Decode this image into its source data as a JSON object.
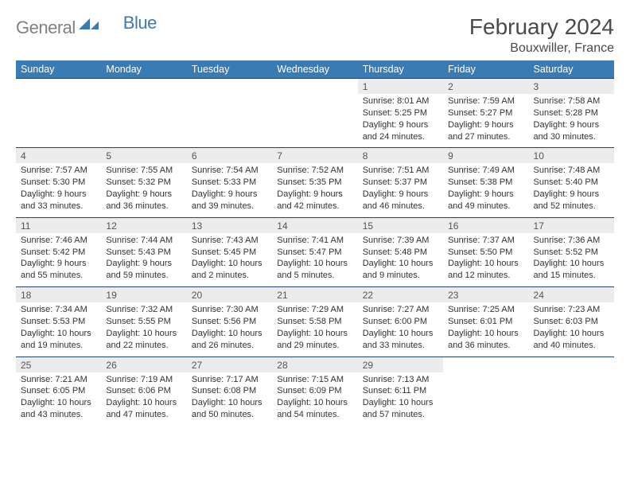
{
  "brand": {
    "part1": "General",
    "part2": "Blue"
  },
  "title": "February 2024",
  "location": "Bouxwiller, France",
  "colors": {
    "header_bg": "#3b7bb3",
    "header_text": "#ffffff",
    "week_divider": "#20456d",
    "daynum_bg": "#ececec",
    "logo_gray": "#808080",
    "logo_blue": "#3b7bb3",
    "body_text": "#333333",
    "page_bg": "#ffffff"
  },
  "typography": {
    "title_fontsize": 28,
    "location_fontsize": 16,
    "header_fontsize": 12.5,
    "daynum_fontsize": 12,
    "detail_fontsize": 11
  },
  "dayHeaders": [
    "Sunday",
    "Monday",
    "Tuesday",
    "Wednesday",
    "Thursday",
    "Friday",
    "Saturday"
  ],
  "weeks": [
    [
      null,
      null,
      null,
      null,
      {
        "n": "1",
        "sr": "8:01 AM",
        "ss": "5:25 PM",
        "dl": "9 hours and 24 minutes."
      },
      {
        "n": "2",
        "sr": "7:59 AM",
        "ss": "5:27 PM",
        "dl": "9 hours and 27 minutes."
      },
      {
        "n": "3",
        "sr": "7:58 AM",
        "ss": "5:28 PM",
        "dl": "9 hours and 30 minutes."
      }
    ],
    [
      {
        "n": "4",
        "sr": "7:57 AM",
        "ss": "5:30 PM",
        "dl": "9 hours and 33 minutes."
      },
      {
        "n": "5",
        "sr": "7:55 AM",
        "ss": "5:32 PM",
        "dl": "9 hours and 36 minutes."
      },
      {
        "n": "6",
        "sr": "7:54 AM",
        "ss": "5:33 PM",
        "dl": "9 hours and 39 minutes."
      },
      {
        "n": "7",
        "sr": "7:52 AM",
        "ss": "5:35 PM",
        "dl": "9 hours and 42 minutes."
      },
      {
        "n": "8",
        "sr": "7:51 AM",
        "ss": "5:37 PM",
        "dl": "9 hours and 46 minutes."
      },
      {
        "n": "9",
        "sr": "7:49 AM",
        "ss": "5:38 PM",
        "dl": "9 hours and 49 minutes."
      },
      {
        "n": "10",
        "sr": "7:48 AM",
        "ss": "5:40 PM",
        "dl": "9 hours and 52 minutes."
      }
    ],
    [
      {
        "n": "11",
        "sr": "7:46 AM",
        "ss": "5:42 PM",
        "dl": "9 hours and 55 minutes."
      },
      {
        "n": "12",
        "sr": "7:44 AM",
        "ss": "5:43 PM",
        "dl": "9 hours and 59 minutes."
      },
      {
        "n": "13",
        "sr": "7:43 AM",
        "ss": "5:45 PM",
        "dl": "10 hours and 2 minutes."
      },
      {
        "n": "14",
        "sr": "7:41 AM",
        "ss": "5:47 PM",
        "dl": "10 hours and 5 minutes."
      },
      {
        "n": "15",
        "sr": "7:39 AM",
        "ss": "5:48 PM",
        "dl": "10 hours and 9 minutes."
      },
      {
        "n": "16",
        "sr": "7:37 AM",
        "ss": "5:50 PM",
        "dl": "10 hours and 12 minutes."
      },
      {
        "n": "17",
        "sr": "7:36 AM",
        "ss": "5:52 PM",
        "dl": "10 hours and 15 minutes."
      }
    ],
    [
      {
        "n": "18",
        "sr": "7:34 AM",
        "ss": "5:53 PM",
        "dl": "10 hours and 19 minutes."
      },
      {
        "n": "19",
        "sr": "7:32 AM",
        "ss": "5:55 PM",
        "dl": "10 hours and 22 minutes."
      },
      {
        "n": "20",
        "sr": "7:30 AM",
        "ss": "5:56 PM",
        "dl": "10 hours and 26 minutes."
      },
      {
        "n": "21",
        "sr": "7:29 AM",
        "ss": "5:58 PM",
        "dl": "10 hours and 29 minutes."
      },
      {
        "n": "22",
        "sr": "7:27 AM",
        "ss": "6:00 PM",
        "dl": "10 hours and 33 minutes."
      },
      {
        "n": "23",
        "sr": "7:25 AM",
        "ss": "6:01 PM",
        "dl": "10 hours and 36 minutes."
      },
      {
        "n": "24",
        "sr": "7:23 AM",
        "ss": "6:03 PM",
        "dl": "10 hours and 40 minutes."
      }
    ],
    [
      {
        "n": "25",
        "sr": "7:21 AM",
        "ss": "6:05 PM",
        "dl": "10 hours and 43 minutes."
      },
      {
        "n": "26",
        "sr": "7:19 AM",
        "ss": "6:06 PM",
        "dl": "10 hours and 47 minutes."
      },
      {
        "n": "27",
        "sr": "7:17 AM",
        "ss": "6:08 PM",
        "dl": "10 hours and 50 minutes."
      },
      {
        "n": "28",
        "sr": "7:15 AM",
        "ss": "6:09 PM",
        "dl": "10 hours and 54 minutes."
      },
      {
        "n": "29",
        "sr": "7:13 AM",
        "ss": "6:11 PM",
        "dl": "10 hours and 57 minutes."
      },
      null,
      null
    ]
  ],
  "labels": {
    "sunrise": "Sunrise:",
    "sunset": "Sunset:",
    "daylight": "Daylight:"
  }
}
